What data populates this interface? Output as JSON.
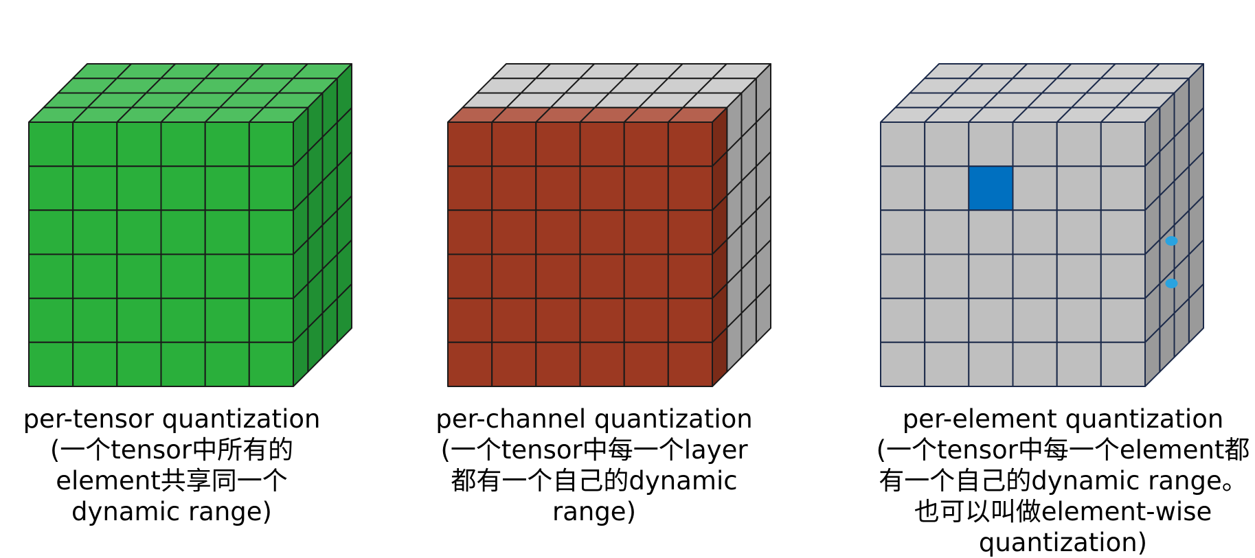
{
  "panels": [
    {
      "id": "per-tensor",
      "caption": {
        "line1": "per-tensor quantization",
        "line2": "(一个tensor中所有的",
        "line3": "element共享同一个",
        "line4": "dynamic range)"
      },
      "colors": {
        "front": "#2aaf3b",
        "top": "#4fbf60",
        "side": "#208f33",
        "edge": "#1a1a1a"
      }
    },
    {
      "id": "per-channel",
      "caption": {
        "line1": "per-channel quantization",
        "line2": "(一个tensor中每一个layer",
        "line3": "都有一个自己的dynamic",
        "line4": "range)"
      },
      "colors": {
        "front": "#9c3922",
        "top_front_row": "#b5614f",
        "top": "#cfcfcf",
        "side_front": "#7a2b18",
        "side": "#9e9e9e",
        "edge": "#1a1a1a"
      }
    },
    {
      "id": "per-element",
      "caption": {
        "line1": "per-element quantization",
        "line2": "(一个tensor中每一个element都",
        "line3": "有一个自己的dynamic range。",
        "line4": "也可以叫做element-wise",
        "line5": "quantization)"
      },
      "colors": {
        "front": "#bfbfbf",
        "top": "#cfcfcf",
        "side": "#9a9a9a",
        "highlight": "#0070c0",
        "side_highlight": "#29a3e0",
        "edge": "#1c2a4a"
      },
      "highlight": {
        "row": 1,
        "col": 2
      }
    }
  ]
}
